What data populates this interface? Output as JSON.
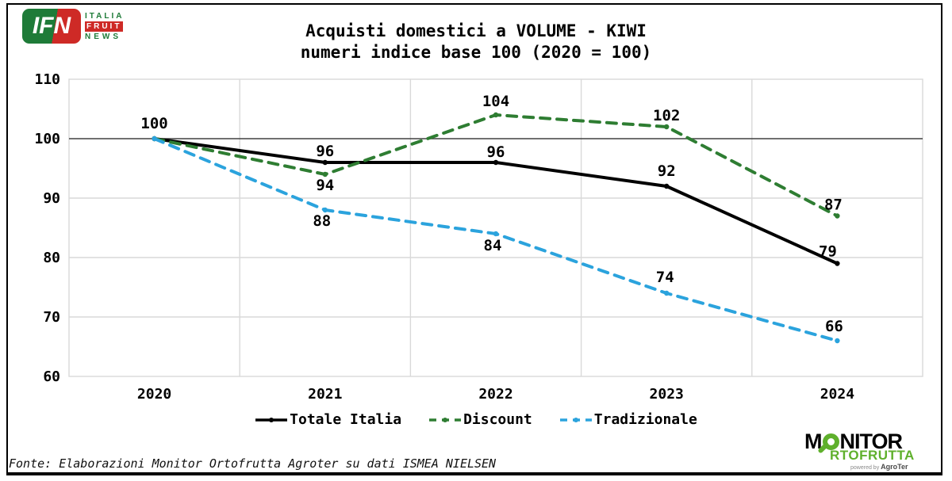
{
  "header": {
    "title_line1": "Acquisti domestici a VOLUME - KIWI",
    "title_line2": "numeri indice base 100 (2020 = 100)"
  },
  "branding": {
    "ifn": {
      "acronym": "IFN",
      "italia": "ITALIA",
      "fruit": "FRUIT",
      "news": "NEWS",
      "green": "#1e7b38",
      "red": "#ce2a26"
    },
    "monitor": {
      "m": "M",
      "nitor": "NITOR",
      "rtofrutta": "RTOFRUTTA",
      "powered_by": "powered by",
      "agroter": "AgroTer",
      "green": "#5fb02c"
    }
  },
  "chart_data": {
    "type": "line",
    "categories": [
      "2020",
      "2021",
      "2022",
      "2023",
      "2024"
    ],
    "series": [
      {
        "name": "Totale Italia",
        "color": "#000000",
        "dash": "solid",
        "values": [
          100,
          96,
          96,
          92,
          79
        ]
      },
      {
        "name": "Discount",
        "color": "#2e7d32",
        "dash": "dashed",
        "values": [
          100,
          94,
          104,
          102,
          87
        ]
      },
      {
        "name": "Tradizionale",
        "color": "#2ba3dd",
        "dash": "dashed",
        "values": [
          100,
          88,
          84,
          74,
          66
        ]
      }
    ],
    "ylim": [
      60,
      110
    ],
    "yticks": [
      110,
      100,
      90,
      80,
      70,
      60
    ],
    "reference_line": 100,
    "grid": true,
    "grid_color": "#d9d9d9",
    "reference_line_color": "#404040",
    "legend_position": "bottom",
    "data_labels": true
  },
  "footer": {
    "source": "Fonte: Elaborazioni Monitor Ortofrutta Agroter su dati ISMEA NIELSEN"
  }
}
